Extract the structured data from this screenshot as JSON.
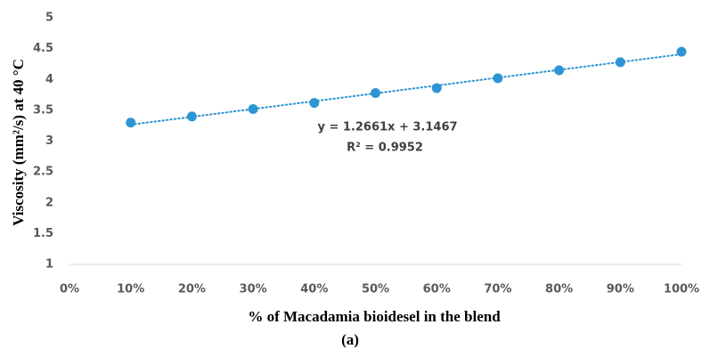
{
  "chart_data": {
    "type": "scatter",
    "x_label": "% of Macadamia bioidesel in the blend",
    "y_label": "Viscosity (mm²/s) at 40 °C",
    "caption": "(a)",
    "series": [
      {
        "name": "Viscosity",
        "color": "#2e95d3",
        "x": [
          0.1,
          0.2,
          0.3,
          0.4,
          0.5,
          0.6,
          0.7,
          0.8,
          0.9,
          1.0
        ],
        "values": [
          3.3,
          3.4,
          3.52,
          3.62,
          3.78,
          3.86,
          4.02,
          4.15,
          4.28,
          4.45
        ]
      }
    ],
    "trendline": {
      "style": "dotted",
      "equation": "y = 1.2661x + 3.1467",
      "r_squared": "R² = 0.9952"
    },
    "xlim": [
      0,
      1
    ],
    "xticks": [
      {
        "value": 0,
        "label": "0%"
      },
      {
        "value": 0.1,
        "label": "10%"
      },
      {
        "value": 0.2,
        "label": "20%"
      },
      {
        "value": 0.3,
        "label": "30%"
      },
      {
        "value": 0.4,
        "label": "40%"
      },
      {
        "value": 0.5,
        "label": "50%"
      },
      {
        "value": 0.6,
        "label": "60%"
      },
      {
        "value": 0.7,
        "label": "70%"
      },
      {
        "value": 0.8,
        "label": "80%"
      },
      {
        "value": 0.9,
        "label": "90%"
      },
      {
        "value": 1.0,
        "label": "100%"
      }
    ],
    "ylim": [
      1,
      5
    ],
    "yticks": [
      1,
      1.5,
      2,
      2.5,
      3,
      3.5,
      4,
      4.5,
      5
    ],
    "grid": false
  }
}
